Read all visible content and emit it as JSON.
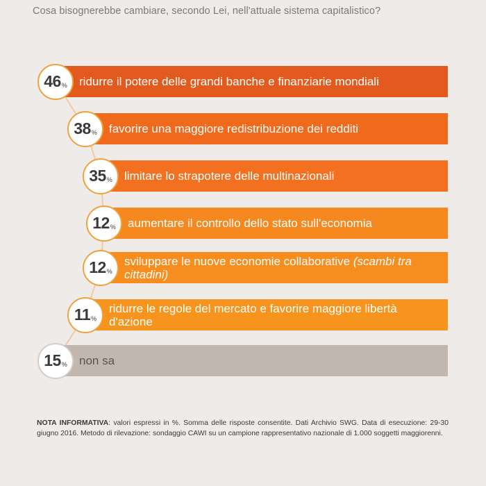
{
  "question": "Cosa bisognerebbe cambiare, secondo Lei, nell'attuale sistema capitalistico?",
  "chart_data": {
    "type": "bar",
    "orientation": "horizontal",
    "unit": "%",
    "items": [
      {
        "value": 46,
        "label": "ridurre il potere delle grandi banche e finanziarie mondiali",
        "label_italic": "",
        "color": "#e35a1e"
      },
      {
        "value": 38,
        "label": "favorire una maggiore redistribuzione dei redditi",
        "label_italic": "",
        "color": "#ef6a1c"
      },
      {
        "value": 35,
        "label": "limitare lo strapotere delle multinazionali",
        "label_italic": "",
        "color": "#f27020"
      },
      {
        "value": 12,
        "label": "aumentare il controllo dello stato sull'economia",
        "label_italic": "",
        "color": "#f5891f"
      },
      {
        "value": 12,
        "label": "sviluppare le nuove economie collaborative",
        "label_italic": "(scambi tra cittadini)",
        "color": "#f68d1e"
      },
      {
        "value": 11,
        "label": "ridurre le regole del mercato e favorire maggiore libertà d'azione",
        "label_italic": "",
        "color": "#f7941d"
      },
      {
        "value": 15,
        "label": "non sa",
        "label_italic": "",
        "color": "#c1b7ae"
      }
    ]
  },
  "note": {
    "heading": "NOTA INFORMATIVA",
    "text": ": valori espressi in %. Somma delle risposte consentite. Dati Archivio SWG. Data di esecuzione: 29-30 giugno 2016. Metodo di rilevazione: sondaggio CAWI su un campione rappresentativo nazionale di 1.000 soggetti maggiorenni."
  }
}
